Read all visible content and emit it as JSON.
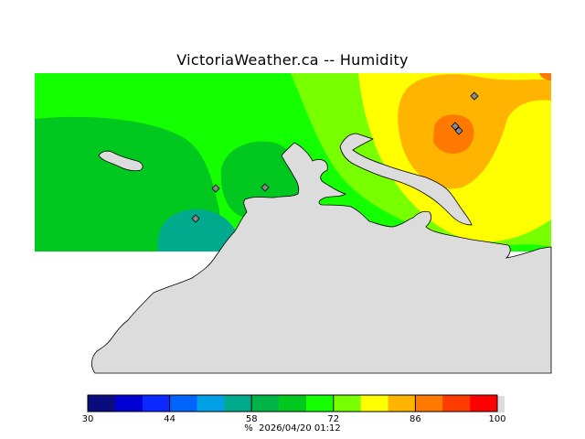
{
  "title": "VictoriaWeather.ca -- Humidity",
  "legend": {
    "min": 30,
    "max": 100,
    "ticks": [
      "30",
      "44",
      "58",
      "72",
      "86",
      "100"
    ],
    "colors": [
      "#0b0b80",
      "#0000d2",
      "#0a28ff",
      "#0064ff",
      "#00a0e6",
      "#00aa8c",
      "#00b446",
      "#00c81e",
      "#14ff00",
      "#78ff00",
      "#ffff00",
      "#ffb400",
      "#ff7800",
      "#ff3c00",
      "#ff0000"
    ]
  },
  "caption": {
    "unit": "%",
    "timestamp": "2026/04/20 01:12"
  },
  "map": {
    "land_color": "#dcdcdc",
    "humidity_colors": {
      "deep_green": "#00c81e",
      "bright_green": "#14ff00",
      "lime": "#78ff00",
      "yellow": "#ffff00",
      "orange": "#ffb400",
      "dark_orange": "#ff7800",
      "teal": "#00aa8c"
    },
    "station_markers": 6
  }
}
